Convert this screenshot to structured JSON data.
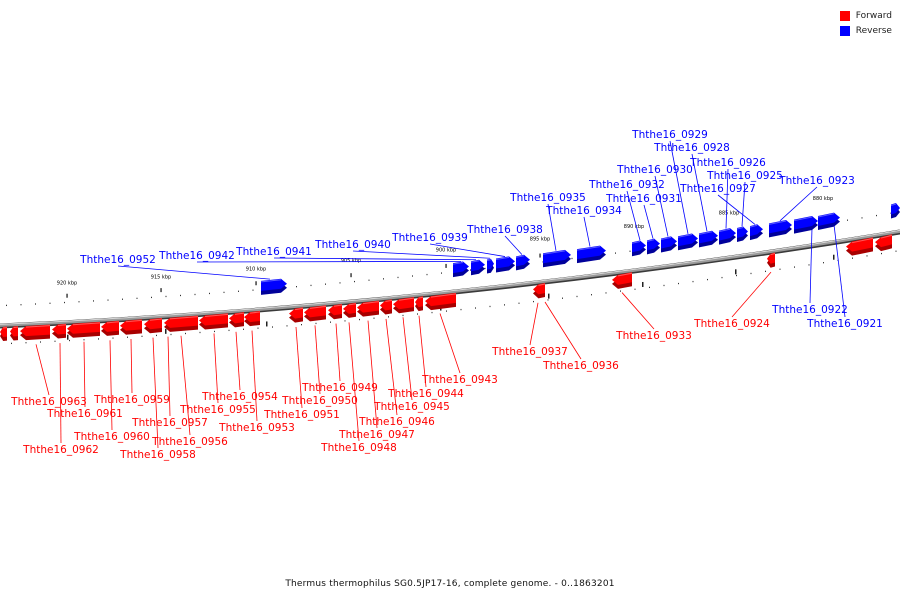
{
  "title": "Thermus thermophilus SG0.5JP17-16, complete genome. - 0..1863201",
  "legend": [
    {
      "label": "Forward",
      "color": "#ff0000"
    },
    {
      "label": "Reverse",
      "color": "#0000ff"
    }
  ],
  "scale_labels": [
    "920 kbp",
    "915 kbp",
    "910 kbp",
    "905 kbp",
    "900 kbp",
    "895 kbp",
    "890 kbp",
    "885 kbp",
    "880 kbp"
  ],
  "genes": {
    "reverse": [
      "Ththe16_0952",
      "Ththe16_0942",
      "Ththe16_0941",
      "Ththe16_0940",
      "Ththe16_0939",
      "Ththe16_0938",
      "Ththe16_0935",
      "Ththe16_0934",
      "Ththe16_0932",
      "Ththe16_0931",
      "Ththe16_0930",
      "Ththe16_0929",
      "Ththe16_0928",
      "Ththe16_0926",
      "Ththe16_0925",
      "Ththe16_0927",
      "Ththe16_0923",
      "Ththe16_0922",
      "Ththe16_0921"
    ],
    "forward": [
      "Ththe16_0963",
      "Ththe16_0962",
      "Ththe16_0961",
      "Ththe16_0960",
      "Ththe16_0959",
      "Ththe16_0958",
      "Ththe16_0957",
      "Ththe16_0956",
      "Ththe16_0955",
      "Ththe16_0954",
      "Ththe16_0953",
      "Ththe16_0951",
      "Ththe16_0950",
      "Ththe16_0949",
      "Ththe16_0948",
      "Ththe16_0947",
      "Ththe16_0946",
      "Ththe16_0945",
      "Ththe16_0944",
      "Ththe16_0943",
      "Ththe16_0937",
      "Ththe16_0936",
      "Ththe16_0933",
      "Ththe16_0924"
    ]
  },
  "colors": {
    "forward": "#ff0000",
    "reverse": "#0000ff",
    "backbone": "#888888"
  }
}
